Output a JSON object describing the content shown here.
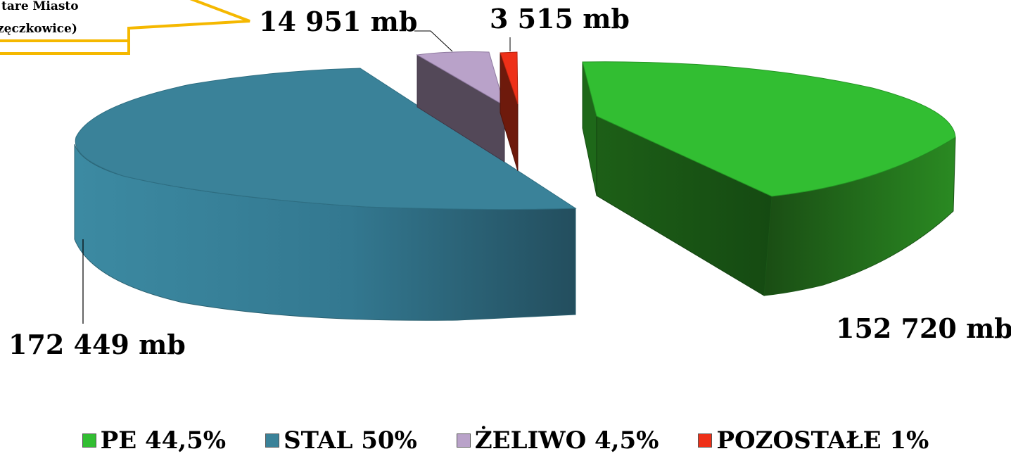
{
  "callout": {
    "line1": "tare Miasto",
    "line2": "zęczkowice)"
  },
  "colors": {
    "pe": "#32be32",
    "stal": "#3a8299",
    "zeliwo": "#b9a2c9",
    "pozostale": "#ee3018",
    "callout_border": "#f5b800"
  },
  "chart_data": {
    "type": "pie",
    "title": "",
    "style": "3d-exploded",
    "legend_position": "bottom",
    "slices": [
      {
        "name": "PE",
        "value": 152720,
        "percent": 44.5,
        "data_label": "152 720 mb",
        "legend_label": "PE 44,5%"
      },
      {
        "name": "STAL",
        "value": 172449,
        "percent": 50,
        "data_label": "172 449 mb",
        "legend_label": "STAL 50%"
      },
      {
        "name": "ŻELIWO",
        "value": 14951,
        "percent": 4.5,
        "data_label": "14 951 mb",
        "legend_label": "ŻELIWO 4,5%"
      },
      {
        "name": "POZOSTAŁE",
        "value": 3515,
        "percent": 1,
        "data_label": "3 515 mb",
        "legend_label": "POZOSTAŁE 1%"
      }
    ]
  }
}
